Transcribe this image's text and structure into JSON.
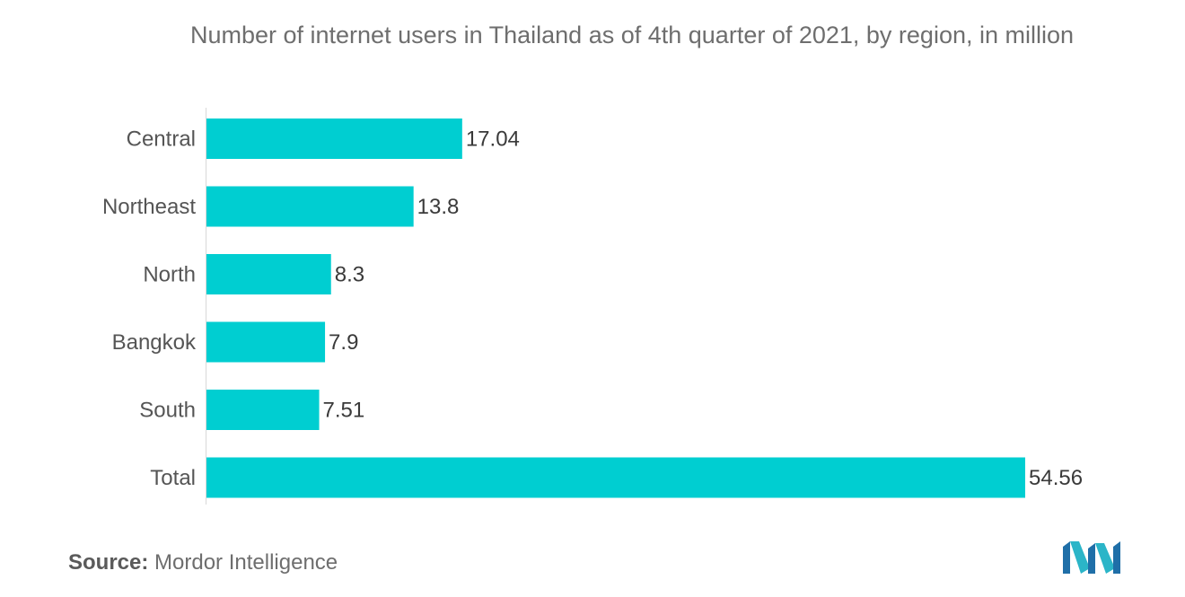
{
  "title": "Number of internet users in Thailand as of 4th quarter of 2021, by region, in million",
  "chart_data": {
    "type": "bar",
    "orientation": "horizontal",
    "title": "Number of internet users in Thailand as of 4th quarter of 2021, by region, in million",
    "categories": [
      "Central",
      "Northeast",
      "North",
      "Bangkok",
      "South",
      "Total"
    ],
    "values": [
      17.04,
      13.8,
      8.3,
      7.9,
      7.51,
      54.56
    ],
    "value_labels": [
      "17.04",
      "13.8",
      "8.3",
      "7.9",
      "7.51",
      "54.56"
    ],
    "xlim": [
      0,
      54.56
    ],
    "grid": false,
    "legend": "none",
    "bar_color": "#00CED1"
  },
  "source": {
    "label": "Source:",
    "text": "Mordor Intelligence"
  },
  "logo": {
    "icon": "mordor-intelligence-logo",
    "colors": [
      "#1f6fa8",
      "#2bb5c8"
    ]
  }
}
